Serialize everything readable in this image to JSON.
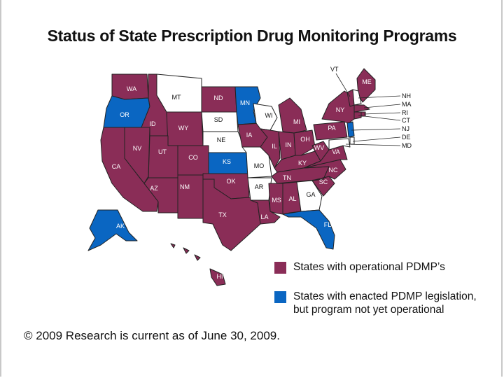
{
  "title": "Status of State Prescription Drug Monitoring Programs",
  "colors": {
    "operational": "#8a2d57",
    "enacted": "#0a66c2",
    "none": "#ffffff"
  },
  "states": [
    {
      "abbr": "WA",
      "status": "operational"
    },
    {
      "abbr": "OR",
      "status": "enacted"
    },
    {
      "abbr": "CA",
      "status": "operational"
    },
    {
      "abbr": "NV",
      "status": "operational"
    },
    {
      "abbr": "ID",
      "status": "operational"
    },
    {
      "abbr": "MT",
      "status": "none"
    },
    {
      "abbr": "WY",
      "status": "operational"
    },
    {
      "abbr": "UT",
      "status": "operational"
    },
    {
      "abbr": "AZ",
      "status": "operational"
    },
    {
      "abbr": "CO",
      "status": "operational"
    },
    {
      "abbr": "NM",
      "status": "operational"
    },
    {
      "abbr": "ND",
      "status": "operational"
    },
    {
      "abbr": "SD",
      "status": "none"
    },
    {
      "abbr": "NE",
      "status": "none"
    },
    {
      "abbr": "KS",
      "status": "enacted"
    },
    {
      "abbr": "OK",
      "status": "operational"
    },
    {
      "abbr": "TX",
      "status": "operational"
    },
    {
      "abbr": "MN",
      "status": "enacted"
    },
    {
      "abbr": "IA",
      "status": "operational"
    },
    {
      "abbr": "MO",
      "status": "none"
    },
    {
      "abbr": "AR",
      "status": "none"
    },
    {
      "abbr": "LA",
      "status": "operational"
    },
    {
      "abbr": "WI",
      "status": "none"
    },
    {
      "abbr": "IL",
      "status": "operational"
    },
    {
      "abbr": "MI",
      "status": "operational"
    },
    {
      "abbr": "IN",
      "status": "operational"
    },
    {
      "abbr": "OH",
      "status": "operational"
    },
    {
      "abbr": "KY",
      "status": "operational"
    },
    {
      "abbr": "TN",
      "status": "operational"
    },
    {
      "abbr": "MS",
      "status": "operational"
    },
    {
      "abbr": "AL",
      "status": "operational"
    },
    {
      "abbr": "GA",
      "status": "none"
    },
    {
      "abbr": "FL",
      "status": "enacted"
    },
    {
      "abbr": "SC",
      "status": "operational"
    },
    {
      "abbr": "NC",
      "status": "operational"
    },
    {
      "abbr": "VA",
      "status": "operational"
    },
    {
      "abbr": "WV",
      "status": "operational"
    },
    {
      "abbr": "PA",
      "status": "operational"
    },
    {
      "abbr": "NY",
      "status": "operational"
    },
    {
      "abbr": "NJ",
      "status": "enacted"
    },
    {
      "abbr": "ME",
      "status": "operational"
    },
    {
      "abbr": "VT",
      "status": "operational"
    },
    {
      "abbr": "NH",
      "status": "none"
    },
    {
      "abbr": "MA",
      "status": "operational"
    },
    {
      "abbr": "RI",
      "status": "operational"
    },
    {
      "abbr": "CT",
      "status": "operational"
    },
    {
      "abbr": "DE",
      "status": "none"
    },
    {
      "abbr": "MD",
      "status": "none"
    },
    {
      "abbr": "AK",
      "status": "enacted"
    },
    {
      "abbr": "HI",
      "status": "operational"
    }
  ],
  "legend": {
    "operational": "States with operational PDMP’s",
    "enacted_line1": "States with enacted PDMP legislation,",
    "enacted_line2": "but program not yet operational"
  },
  "footer": "© 2009 Research is current as of June 30, 2009."
}
